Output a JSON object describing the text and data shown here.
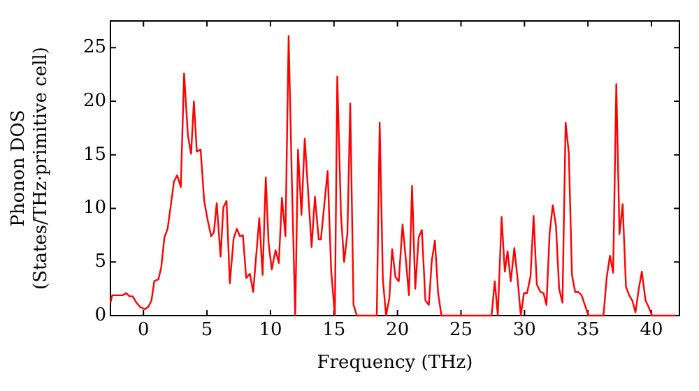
{
  "chart_data": {
    "type": "line",
    "xlabel": "Frequency (THz)",
    "ylabel": "Phonon DOS\n(States/THz·primitive cell)",
    "xlim": [
      -2.6,
      42.2
    ],
    "ylim": [
      0,
      27.5
    ],
    "xticks": [
      0,
      5,
      10,
      15,
      20,
      25,
      30,
      35,
      40
    ],
    "yticks": [
      0,
      5,
      10,
      15,
      20,
      25
    ],
    "grid": false,
    "legend": false,
    "marker": "none",
    "line_style": "solid",
    "series": [
      {
        "color": "#ff0000",
        "x": [
          -2.6,
          -2.46,
          -1.65,
          -1.36,
          -1.1,
          -0.85,
          -0.55,
          -0.26,
          0.1,
          0.37,
          0.63,
          0.85,
          1.18,
          1.4,
          1.65,
          1.9,
          2.2,
          2.4,
          2.65,
          2.94,
          3.2,
          3.5,
          3.75,
          3.97,
          4.2,
          4.5,
          4.78,
          5.04,
          5.33,
          5.55,
          5.77,
          6.07,
          6.29,
          6.54,
          6.8,
          7.1,
          7.35,
          7.6,
          7.83,
          8.09,
          8.38,
          8.64,
          9.12,
          9.38,
          9.63,
          9.85,
          10.1,
          10.4,
          10.66,
          10.9,
          11.18,
          11.43,
          11.7,
          11.95,
          12.17,
          12.44,
          12.7,
          13.24,
          13.5,
          13.8,
          13.97,
          14.5,
          14.78,
          15.07,
          15.26,
          15.55,
          15.8,
          16.06,
          16.28,
          16.54,
          16.8,
          18.37,
          18.6,
          18.85,
          19.1,
          19.36,
          19.58,
          19.84,
          20.1,
          20.4,
          20.64,
          20.9,
          21.15,
          21.4,
          21.67,
          21.92,
          22.2,
          22.47,
          22.7,
          22.95,
          23.2,
          23.46,
          27.41,
          27.66,
          27.9,
          28.2,
          28.45,
          28.67,
          28.92,
          29.2,
          29.46,
          29.71,
          29.96,
          30.2,
          30.47,
          30.72,
          30.97,
          31.26,
          31.5,
          31.73,
          31.98,
          32.23,
          32.48,
          32.73,
          32.99,
          33.24,
          33.49,
          33.74,
          33.99,
          34.24,
          34.5,
          34.75,
          35.04,
          36.22,
          36.47,
          36.73,
          36.98,
          37.23,
          37.48,
          37.73,
          37.99,
          38.24,
          38.49,
          38.74,
          39.0,
          39.24,
          39.53,
          39.78,
          40.04,
          41.9
        ],
        "values": [
          1.2,
          1.9,
          1.9,
          2.1,
          1.8,
          1.8,
          1.2,
          0.8,
          0.6,
          0.8,
          1.4,
          3.2,
          3.4,
          4.5,
          7.3,
          8.1,
          10.7,
          12.5,
          13.1,
          12.0,
          22.6,
          16.8,
          15.1,
          20.0,
          15.3,
          15.5,
          10.7,
          9.0,
          7.4,
          7.8,
          10.5,
          5.5,
          10.1,
          10.7,
          3.0,
          7.2,
          8.1,
          7.4,
          7.5,
          3.5,
          3.9,
          2.2,
          9.1,
          3.8,
          12.9,
          6.8,
          4.3,
          6.1,
          4.9,
          11.0,
          7.4,
          26.1,
          11.8,
          0,
          15.5,
          9.4,
          16.5,
          6.4,
          11.1,
          7.1,
          7.1,
          13.5,
          4.2,
          0,
          22.3,
          9.4,
          5.0,
          7.7,
          19.8,
          1.0,
          0,
          0,
          18.0,
          3.4,
          0,
          1.6,
          6.2,
          3.6,
          3.2,
          8.5,
          5.5,
          1.9,
          12.1,
          2.5,
          7.3,
          8.0,
          1.4,
          1.0,
          5.1,
          7.0,
          2.1,
          0,
          0,
          3.2,
          0,
          9.2,
          4.1,
          6.0,
          3.2,
          6.3,
          3.4,
          0,
          2.1,
          2.1,
          3.6,
          9.3,
          2.9,
          2.2,
          2.1,
          1.0,
          7.7,
          10.3,
          8.4,
          2.5,
          1.2,
          18.0,
          15.2,
          3.8,
          2.2,
          2.2,
          1.9,
          1.0,
          0,
          0,
          3.5,
          5.6,
          4.0,
          21.6,
          7.6,
          10.4,
          2.7,
          1.9,
          1.4,
          0.3,
          2.5,
          4.1,
          1.4,
          0.8,
          0,
          0
        ]
      }
    ]
  }
}
